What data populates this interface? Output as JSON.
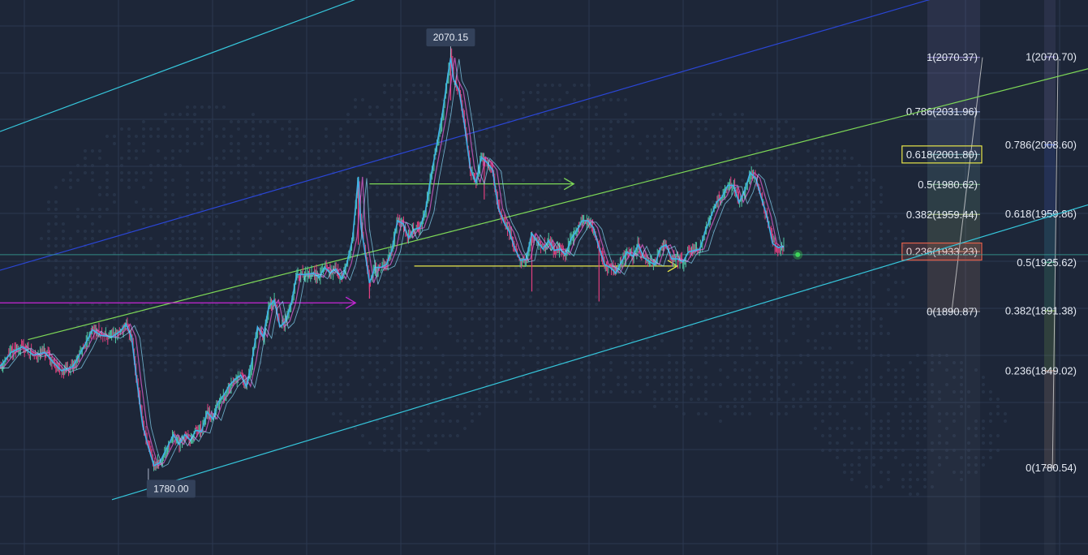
{
  "chart_data": {
    "type": "line",
    "title": "",
    "xlabel": "",
    "ylabel": "",
    "ylim": [
      1740,
      2110
    ],
    "grid": true,
    "legend": "none",
    "colors": {
      "background": "#1d2638",
      "grid": "#2c3850",
      "price_line": "#3fb2e8",
      "candle_up": "#4fc6a2",
      "candle_down": "#e2407f",
      "channel_upper_cyan": "#36c7dc",
      "channel_blue": "#2a46d6",
      "channel_green": "#7ed957",
      "channel_lower_cyan": "#36c7dc",
      "arrow_magenta": "#c826d6",
      "arrow_green": "#7ed957",
      "arrow_yellow": "#e8e64a",
      "current_price_line": "#3aa59a",
      "fib_box_yellow": "#e8e64a",
      "fib_box_red": "#e2614a"
    },
    "price_series": {
      "name": "",
      "points": [
        [
          0,
          1852
        ],
        [
          4,
          1862
        ],
        [
          8,
          1866
        ],
        [
          12,
          1860
        ],
        [
          16,
          1862
        ],
        [
          19,
          1855
        ],
        [
          22,
          1849
        ],
        [
          26,
          1852
        ],
        [
          30,
          1866
        ],
        [
          33,
          1878
        ],
        [
          36,
          1874
        ],
        [
          40,
          1873
        ],
        [
          43,
          1877
        ],
        [
          45,
          1882
        ],
        [
          47,
          1873
        ],
        [
          49,
          1840
        ],
        [
          51,
          1810
        ],
        [
          53,
          1795
        ],
        [
          55,
          1782
        ],
        [
          57,
          1784
        ],
        [
          59,
          1792
        ],
        [
          62,
          1804
        ],
        [
          64,
          1797
        ],
        [
          66,
          1804
        ],
        [
          68,
          1800
        ],
        [
          70,
          1807
        ],
        [
          72,
          1806
        ],
        [
          74,
          1820
        ],
        [
          76,
          1815
        ],
        [
          78,
          1827
        ],
        [
          80,
          1832
        ],
        [
          82,
          1839
        ],
        [
          84,
          1843
        ],
        [
          86,
          1846
        ],
        [
          88,
          1838
        ],
        [
          90,
          1856
        ],
        [
          92,
          1880
        ],
        [
          94,
          1873
        ],
        [
          96,
          1894
        ],
        [
          98,
          1899
        ],
        [
          100,
          1880
        ],
        [
          102,
          1884
        ],
        [
          104,
          1896
        ],
        [
          106,
          1917
        ],
        [
          109,
          1917
        ],
        [
          112,
          1918
        ],
        [
          114,
          1915
        ],
        [
          116,
          1922
        ],
        [
          118,
          1918
        ],
        [
          120,
          1921
        ],
        [
          122,
          1914
        ],
        [
          124,
          1925
        ],
        [
          126,
          1943
        ],
        [
          128,
          1986
        ],
        [
          129,
          1950
        ],
        [
          130,
          1938
        ],
        [
          132,
          1911
        ],
        [
          134,
          1922
        ],
        [
          136,
          1922
        ],
        [
          138,
          1924
        ],
        [
          140,
          1934
        ],
        [
          142,
          1955
        ],
        [
          144,
          1953
        ],
        [
          146,
          1943
        ],
        [
          148,
          1949
        ],
        [
          150,
          1950
        ],
        [
          152,
          1962
        ],
        [
          154,
          1987
        ],
        [
          156,
          2008
        ],
        [
          158,
          2030
        ],
        [
          160,
          2058
        ],
        [
          161,
          2070.15
        ],
        [
          162,
          2055
        ],
        [
          164,
          2047
        ],
        [
          166,
          2022
        ],
        [
          168,
          1992
        ],
        [
          170,
          1982
        ],
        [
          172,
          2000
        ],
        [
          174,
          1996
        ],
        [
          176,
          1991
        ],
        [
          178,
          1964
        ],
        [
          180,
          1954
        ],
        [
          182,
          1947
        ],
        [
          184,
          1935
        ],
        [
          186,
          1927
        ],
        [
          188,
          1928
        ],
        [
          190,
          1946
        ],
        [
          192,
          1940
        ],
        [
          194,
          1935
        ],
        [
          196,
          1941
        ],
        [
          198,
          1934
        ],
        [
          200,
          1935
        ],
        [
          202,
          1931
        ],
        [
          204,
          1942
        ],
        [
          206,
          1948
        ],
        [
          208,
          1955
        ],
        [
          210,
          1955
        ],
        [
          212,
          1950
        ],
        [
          214,
          1936
        ],
        [
          216,
          1924
        ],
        [
          218,
          1922
        ],
        [
          220,
          1918
        ],
        [
          222,
          1926
        ],
        [
          224,
          1933
        ],
        [
          226,
          1930
        ],
        [
          228,
          1938
        ],
        [
          230,
          1929
        ],
        [
          232,
          1926
        ],
        [
          234,
          1924
        ],
        [
          236,
          1936
        ],
        [
          238,
          1938
        ],
        [
          240,
          1928
        ],
        [
          242,
          1928
        ],
        [
          244,
          1926
        ],
        [
          246,
          1933
        ],
        [
          248,
          1934
        ],
        [
          250,
          1935
        ],
        [
          252,
          1948
        ],
        [
          254,
          1958
        ],
        [
          256,
          1968
        ],
        [
          258,
          1972
        ],
        [
          260,
          1980
        ],
        [
          262,
          1980
        ],
        [
          264,
          1968
        ],
        [
          266,
          1976
        ],
        [
          268,
          1989
        ],
        [
          270,
          1985
        ],
        [
          272,
          1971
        ],
        [
          274,
          1958
        ],
        [
          276,
          1939
        ],
        [
          278,
          1936
        ],
        [
          280,
          1937
        ]
      ]
    },
    "extreme_labels": [
      {
        "text": "2070.15",
        "x": 161,
        "y": 2070.15,
        "kind": "high"
      },
      {
        "text": "1780.00",
        "x": 53,
        "y": 1780.0,
        "kind": "low"
      }
    ],
    "channel_lines": [
      {
        "color_key": "channel_upper_cyan",
        "from": [
          0,
          2018
        ],
        "to": [
          230,
          2187
        ]
      },
      {
        "color_key": "channel_blue",
        "from": [
          0,
          1920
        ],
        "to": [
          344,
          2118
        ]
      },
      {
        "color_key": "channel_green",
        "from": [
          10,
          1871
        ],
        "to": [
          390,
          2063
        ]
      },
      {
        "color_key": "channel_lower_cyan",
        "from": [
          40,
          1758
        ],
        "to": [
          390,
          1967
        ]
      }
    ],
    "horizontal_arrows": [
      {
        "color_key": "arrow_magenta",
        "from": [
          0,
          1897
        ],
        "to": [
          127,
          1897
        ]
      },
      {
        "color_key": "arrow_green",
        "from": [
          132,
          1981
        ],
        "to": [
          205,
          1981
        ]
      },
      {
        "color_key": "arrow_yellow",
        "from": [
          148,
          1923
        ],
        "to": [
          242,
          1923
        ]
      }
    ],
    "current_price": {
      "x": 285,
      "y": 1931
    },
    "fib_retracement_left": {
      "from": [
        340,
        1890.87
      ],
      "to": [
        351,
        2070.37
      ],
      "levels": [
        {
          "label": "1(2070.37)",
          "value": 2070.37,
          "color": "#8f86c9"
        },
        {
          "label": "0.786(2031.96)",
          "value": 2031.96,
          "color": "#7d8fc0"
        },
        {
          "label": "0.618(2001.80)",
          "value": 2001.8,
          "color": "#6fa0a8",
          "boxed": "fib_box_yellow"
        },
        {
          "label": "0.5(1980.62)",
          "value": 1980.62,
          "color": "#7cae8a"
        },
        {
          "label": "0.382(1959.44)",
          "value": 1959.44,
          "color": "#9bb07b"
        },
        {
          "label": "0.236(1933.23)",
          "value": 1933.23,
          "color": "#b08673",
          "boxed": "fib_box_red"
        },
        {
          "label": "0(1890.87)",
          "value": 1890.87,
          "color": "#8e8e96"
        }
      ]
    },
    "fib_retracement_right": {
      "from": [
        376,
        1780.54
      ],
      "to": [
        378,
        2070.7
      ],
      "levels": [
        {
          "label": "1(2070.70)",
          "value": 2070.7,
          "color": "#8f86c9"
        },
        {
          "label": "0.786(2008.60)",
          "value": 2008.6,
          "color": "#4666d8"
        },
        {
          "label": "0.618(1959.86)",
          "value": 1959.86,
          "color": "#3f9fc0"
        },
        {
          "label": "0.5(1925.62)",
          "value": 1925.62,
          "color": "#4fb28a"
        },
        {
          "label": "0.382(1891.38)",
          "value": 1891.38,
          "color": "#89b85a"
        },
        {
          "label": "0.236(1849.02)",
          "value": 1849.02,
          "color": "#b99080"
        },
        {
          "label": "0(1780.54)",
          "value": 1780.54,
          "color": "#8e8e96"
        }
      ]
    }
  }
}
